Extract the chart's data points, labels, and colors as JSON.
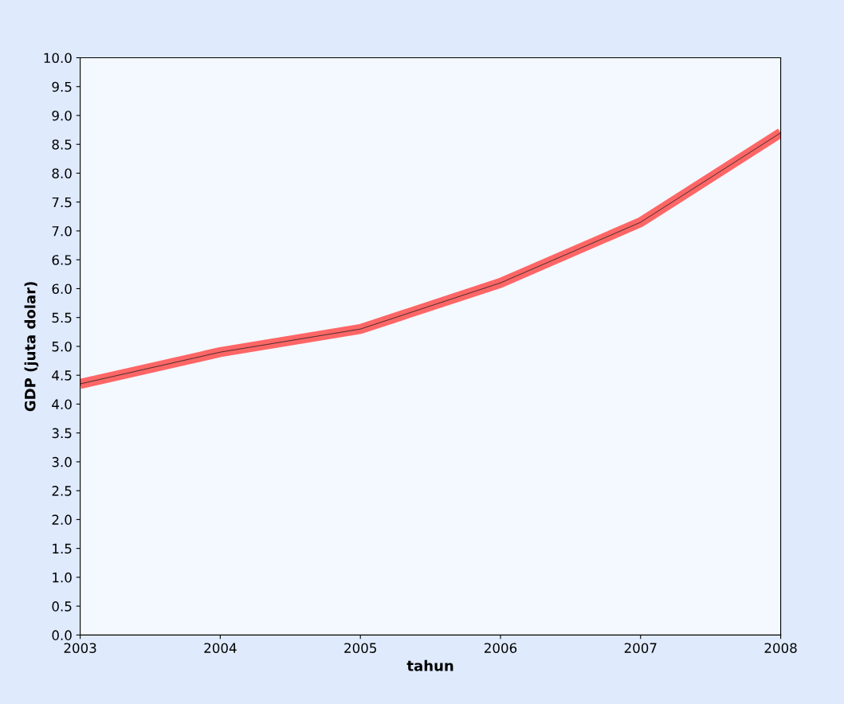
{
  "chart_data": {
    "type": "line",
    "xlabel": "tahun",
    "ylabel": "GDP (juta dolar)",
    "x": [
      2003,
      2004,
      2005,
      2006,
      2007,
      2008
    ],
    "series": [
      {
        "color": "#ff6666",
        "values": [
          4.35,
          4.9,
          5.3,
          6.1,
          7.15,
          8.7
        ]
      }
    ],
    "xlim": [
      2003,
      2008
    ],
    "xticks": [
      2003,
      2004,
      2005,
      2006,
      2007,
      2008
    ],
    "ylim": [
      0,
      10
    ],
    "yticks": [
      {
        "value": 0,
        "label": "0.0"
      },
      0.5,
      {
        "value": 1,
        "label": "1.0"
      },
      1.5,
      {
        "value": 2,
        "label": "2.0"
      },
      2.5,
      {
        "value": 3,
        "label": "3.0"
      },
      3.5,
      {
        "value": 4,
        "label": "4.0"
      },
      4.5,
      {
        "value": 5,
        "label": "5.0"
      },
      5.5,
      {
        "value": 6,
        "label": "6.0"
      },
      6.5,
      {
        "value": 7,
        "label": "7.0"
      },
      7.5,
      {
        "value": 8,
        "label": "8.0"
      },
      8.5,
      {
        "value": 9,
        "label": "9.0"
      },
      9.5,
      {
        "value": 10,
        "label": "10.0"
      }
    ],
    "grid": false,
    "marker": "none",
    "line_style": "solid"
  }
}
